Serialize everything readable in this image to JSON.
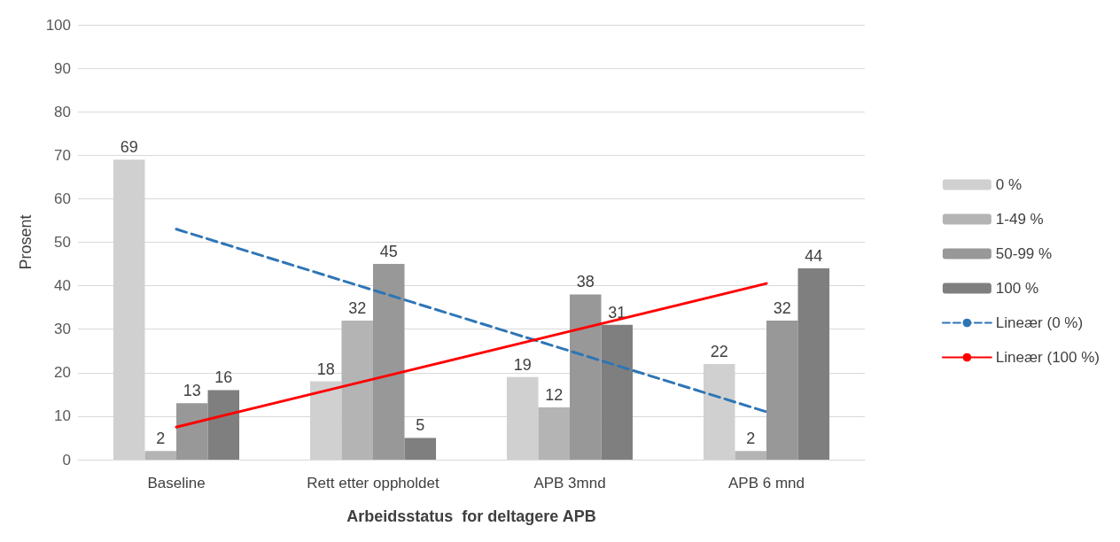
{
  "chart_data": {
    "type": "bar",
    "xlabel": "Arbeidsstatus  for deltagere APB",
    "ylabel": "Prosent",
    "categories": [
      "Baseline",
      "Rett etter oppholdet",
      "APB 3mnd",
      "APB 6 mnd"
    ],
    "series": [
      {
        "name": "0 %",
        "color": "#d0d0d0",
        "values": [
          69,
          18,
          19,
          22
        ],
        "value_labels": [
          "69",
          "18",
          "19",
          "22"
        ]
      },
      {
        "name": "1-49 %",
        "color": "#b4b4b4",
        "values": [
          2,
          32,
          12,
          2
        ],
        "value_labels": [
          "2",
          "32",
          "12",
          "2"
        ]
      },
      {
        "name": "50-99 %",
        "color": "#989898",
        "values": [
          13,
          45,
          38,
          32
        ],
        "value_labels": [
          "13",
          "45",
          "38",
          "32"
        ]
      },
      {
        "name": "100 %",
        "color": "#7f7f7f",
        "values": [
          16,
          5,
          31,
          44
        ],
        "value_labels": [
          "16",
          "5",
          "31",
          "44"
        ]
      },
      {
        "name": "Lineær (0 %)",
        "type": "line",
        "color": "#2e75b6",
        "line_style": "dashed",
        "values": [
          53,
          39,
          25,
          11
        ]
      },
      {
        "name": "Lineær (100 %)",
        "type": "line",
        "color": "#ff0000",
        "line_style": "solid",
        "values": [
          7.5,
          18.5,
          29.5,
          40.5
        ]
      }
    ],
    "ylim": [
      0,
      100
    ],
    "yticks": [
      0,
      10,
      20,
      30,
      40,
      50,
      60,
      70,
      80,
      90,
      100
    ],
    "grid": "y",
    "legend": "right",
    "marker": "none"
  }
}
